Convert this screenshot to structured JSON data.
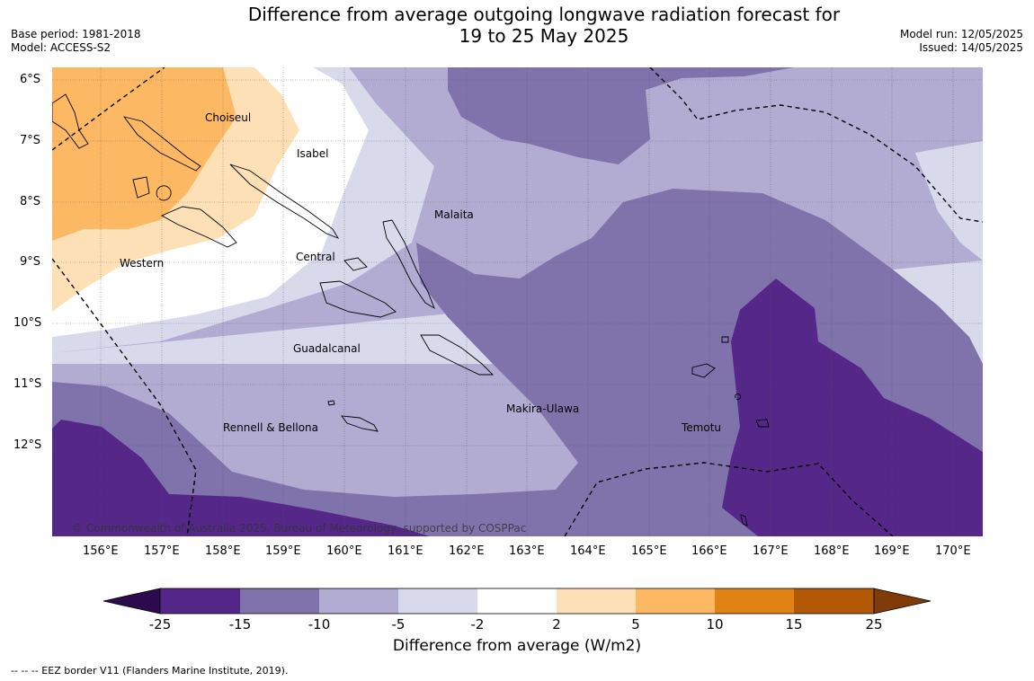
{
  "title_line1": "Difference from average outgoing longwave radiation forecast for",
  "title_line2": "19 to 25 May 2025",
  "base_period": "Base period: 1981-2018",
  "model": "Model: ACCESS-S2",
  "model_run": "Model run: 12/05/2025",
  "issued": "Issued: 14/05/2025",
  "copyright": "© Commonwealth of Australia 2025, Bureau of Meteorology, supported by COSPPac",
  "lat_labels": [
    "6°S",
    "7°S",
    "8°S",
    "9°S",
    "10°S",
    "11°S",
    "12°S"
  ],
  "lon_labels": [
    "156°E",
    "157°E",
    "158°E",
    "159°E",
    "160°E",
    "161°E",
    "162°E",
    "163°E",
    "164°E",
    "165°E",
    "166°E",
    "167°E",
    "168°E",
    "169°E",
    "170°E"
  ],
  "provinces": [
    "Choiseul",
    "Isabel",
    "Malaita",
    "Western",
    "Central",
    "Guadalcanal",
    "Makira-Ulawa",
    "Rennell & Bellona",
    "Temotu"
  ],
  "colorbar": {
    "ticks": [
      "-25",
      "-15",
      "-10",
      "-5",
      "-2",
      "2",
      "5",
      "10",
      "15",
      "25"
    ],
    "colors": [
      "#2d0a4e",
      "#542788",
      "#8073ac",
      "#b2abd2",
      "#d8daeb",
      "#ffffff",
      "#fee0b6",
      "#fdb863",
      "#e08214",
      "#b35806",
      "#7f3b08"
    ],
    "label": "Difference from average (W/m2)"
  },
  "footnote": "--  --  -- EEZ border V11 (Flanders Marine Institute, 2019)."
}
